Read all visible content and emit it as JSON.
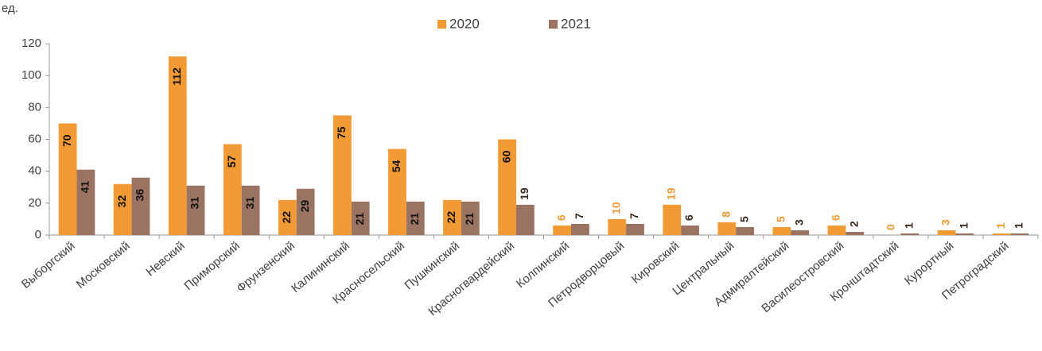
{
  "chart_data": {
    "type": "bar",
    "unit_label": "ед.",
    "categories": [
      "Выборгский",
      "Московский",
      "Невский",
      "Приморский",
      "Фрунзенский",
      "Калининский",
      "Красносельский",
      "Пушкинский",
      "Красногвардейский",
      "Колпинский",
      "Петродворцовый",
      "Кировский",
      "Центральный",
      "Адмиралтейский",
      "Василеостровский",
      "Кронштадтский",
      "Курортный",
      "Петроградский"
    ],
    "series": [
      {
        "name": "2020",
        "color": "#f29a33",
        "values": [
          70,
          32,
          112,
          57,
          22,
          75,
          54,
          22,
          60,
          6,
          10,
          19,
          8,
          5,
          6,
          0,
          3,
          1
        ]
      },
      {
        "name": "2021",
        "color": "#9b7363",
        "values": [
          41,
          36,
          31,
          31,
          29,
          21,
          21,
          21,
          19,
          7,
          7,
          6,
          5,
          3,
          2,
          1,
          1,
          1
        ]
      }
    ],
    "ylim": [
      0,
      120
    ],
    "yticks": [
      0,
      20,
      40,
      60,
      80,
      100,
      120
    ],
    "grid": false,
    "legend": "top"
  }
}
